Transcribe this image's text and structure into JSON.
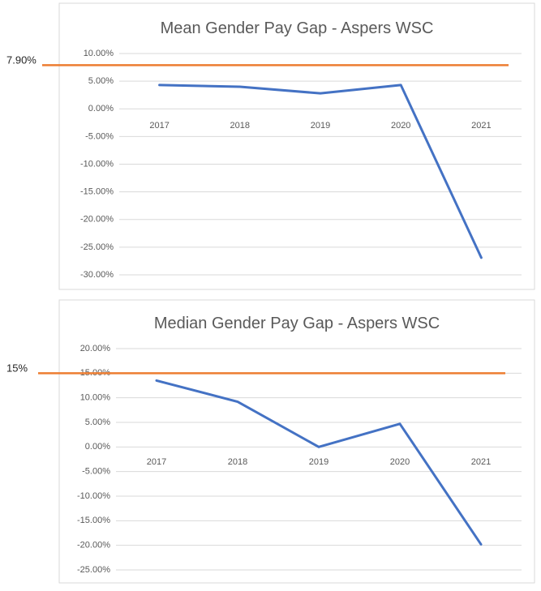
{
  "colors": {
    "series": "#4472c4",
    "reference": "#ed7d31",
    "grid": "#d9d9d9",
    "text": "#595959"
  },
  "chart_data": [
    {
      "type": "line",
      "title": "Mean Gender Pay Gap - Aspers WSC",
      "categories": [
        "2017",
        "2018",
        "2019",
        "2020",
        "2021"
      ],
      "series": [
        {
          "values": [
            4.3,
            4.0,
            2.8,
            4.3,
            -26.9
          ]
        }
      ],
      "y_ticks": [
        "10.00%",
        "5.00%",
        "0.00%",
        "-5.00%",
        "-10.00%",
        "-15.00%",
        "-20.00%",
        "-25.00%",
        "-30.00%"
      ],
      "ylim": [
        -30,
        10
      ],
      "y_step": 5,
      "unit": "%",
      "reference_line": {
        "value": 7.9,
        "label": "7.90%"
      },
      "grid": true,
      "legend": "none"
    },
    {
      "type": "line",
      "title": "Median Gender Pay Gap - Aspers WSC",
      "categories": [
        "2017",
        "2018",
        "2019",
        "2020",
        "2021"
      ],
      "series": [
        {
          "values": [
            13.5,
            9.2,
            0.0,
            4.7,
            -19.8
          ]
        }
      ],
      "y_ticks": [
        "20.00%",
        "15.00%",
        "10.00%",
        "5.00%",
        "0.00%",
        "-5.00%",
        "-10.00%",
        "-15.00%",
        "-20.00%",
        "-25.00%"
      ],
      "ylim": [
        -25,
        20
      ],
      "y_step": 5,
      "unit": "%",
      "reference_line": {
        "value": 15,
        "label": "15%"
      },
      "grid": true,
      "legend": "none"
    }
  ]
}
